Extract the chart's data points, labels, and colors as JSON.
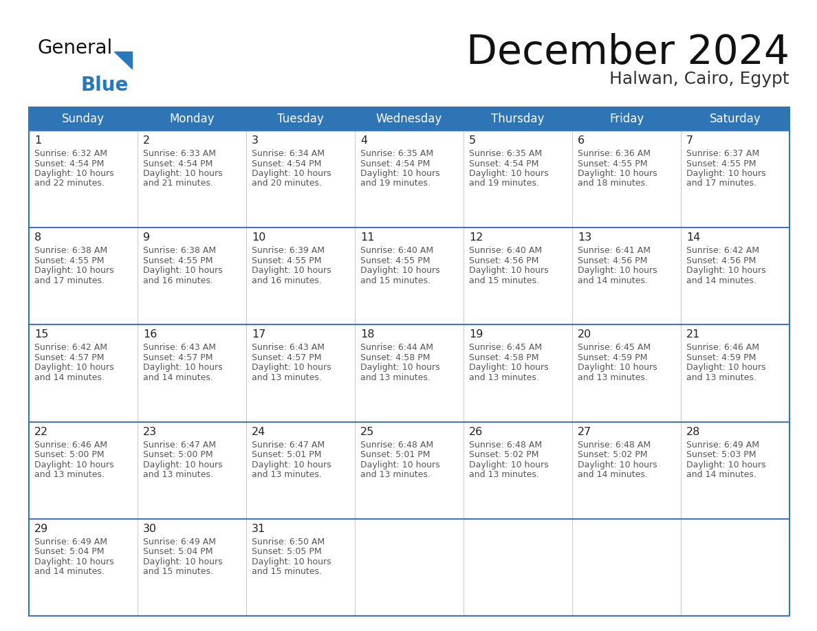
{
  "title": "December 2024",
  "subtitle": "Halwan, Cairo, Egypt",
  "header_color": "#2E75B6",
  "header_text_color": "#FFFFFF",
  "day_names": [
    "Sunday",
    "Monday",
    "Tuesday",
    "Wednesday",
    "Thursday",
    "Friday",
    "Saturday"
  ],
  "cell_bg_color": "#FFFFFF",
  "cell_border_color": "#2E75B6",
  "row_separator_color": "#4472C4",
  "vert_separator_color": "#C0C0C0",
  "day_num_color": "#222222",
  "text_color": "#555555",
  "bg_color": "#FFFFFF",
  "logo_general_color": "#111111",
  "logo_blue_color": "#2878BE",
  "calendar_data": [
    [
      {
        "day": 1,
        "sunrise": "6:32 AM",
        "sunset": "4:54 PM",
        "daylight": "10 hours and 22 minutes."
      },
      {
        "day": 2,
        "sunrise": "6:33 AM",
        "sunset": "4:54 PM",
        "daylight": "10 hours and 21 minutes."
      },
      {
        "day": 3,
        "sunrise": "6:34 AM",
        "sunset": "4:54 PM",
        "daylight": "10 hours and 20 minutes."
      },
      {
        "day": 4,
        "sunrise": "6:35 AM",
        "sunset": "4:54 PM",
        "daylight": "10 hours and 19 minutes."
      },
      {
        "day": 5,
        "sunrise": "6:35 AM",
        "sunset": "4:54 PM",
        "daylight": "10 hours and 19 minutes."
      },
      {
        "day": 6,
        "sunrise": "6:36 AM",
        "sunset": "4:55 PM",
        "daylight": "10 hours and 18 minutes."
      },
      {
        "day": 7,
        "sunrise": "6:37 AM",
        "sunset": "4:55 PM",
        "daylight": "10 hours and 17 minutes."
      }
    ],
    [
      {
        "day": 8,
        "sunrise": "6:38 AM",
        "sunset": "4:55 PM",
        "daylight": "10 hours and 17 minutes."
      },
      {
        "day": 9,
        "sunrise": "6:38 AM",
        "sunset": "4:55 PM",
        "daylight": "10 hours and 16 minutes."
      },
      {
        "day": 10,
        "sunrise": "6:39 AM",
        "sunset": "4:55 PM",
        "daylight": "10 hours and 16 minutes."
      },
      {
        "day": 11,
        "sunrise": "6:40 AM",
        "sunset": "4:55 PM",
        "daylight": "10 hours and 15 minutes."
      },
      {
        "day": 12,
        "sunrise": "6:40 AM",
        "sunset": "4:56 PM",
        "daylight": "10 hours and 15 minutes."
      },
      {
        "day": 13,
        "sunrise": "6:41 AM",
        "sunset": "4:56 PM",
        "daylight": "10 hours and 14 minutes."
      },
      {
        "day": 14,
        "sunrise": "6:42 AM",
        "sunset": "4:56 PM",
        "daylight": "10 hours and 14 minutes."
      }
    ],
    [
      {
        "day": 15,
        "sunrise": "6:42 AM",
        "sunset": "4:57 PM",
        "daylight": "10 hours and 14 minutes."
      },
      {
        "day": 16,
        "sunrise": "6:43 AM",
        "sunset": "4:57 PM",
        "daylight": "10 hours and 14 minutes."
      },
      {
        "day": 17,
        "sunrise": "6:43 AM",
        "sunset": "4:57 PM",
        "daylight": "10 hours and 13 minutes."
      },
      {
        "day": 18,
        "sunrise": "6:44 AM",
        "sunset": "4:58 PM",
        "daylight": "10 hours and 13 minutes."
      },
      {
        "day": 19,
        "sunrise": "6:45 AM",
        "sunset": "4:58 PM",
        "daylight": "10 hours and 13 minutes."
      },
      {
        "day": 20,
        "sunrise": "6:45 AM",
        "sunset": "4:59 PM",
        "daylight": "10 hours and 13 minutes."
      },
      {
        "day": 21,
        "sunrise": "6:46 AM",
        "sunset": "4:59 PM",
        "daylight": "10 hours and 13 minutes."
      }
    ],
    [
      {
        "day": 22,
        "sunrise": "6:46 AM",
        "sunset": "5:00 PM",
        "daylight": "10 hours and 13 minutes."
      },
      {
        "day": 23,
        "sunrise": "6:47 AM",
        "sunset": "5:00 PM",
        "daylight": "10 hours and 13 minutes."
      },
      {
        "day": 24,
        "sunrise": "6:47 AM",
        "sunset": "5:01 PM",
        "daylight": "10 hours and 13 minutes."
      },
      {
        "day": 25,
        "sunrise": "6:48 AM",
        "sunset": "5:01 PM",
        "daylight": "10 hours and 13 minutes."
      },
      {
        "day": 26,
        "sunrise": "6:48 AM",
        "sunset": "5:02 PM",
        "daylight": "10 hours and 13 minutes."
      },
      {
        "day": 27,
        "sunrise": "6:48 AM",
        "sunset": "5:02 PM",
        "daylight": "10 hours and 14 minutes."
      },
      {
        "day": 28,
        "sunrise": "6:49 AM",
        "sunset": "5:03 PM",
        "daylight": "10 hours and 14 minutes."
      }
    ],
    [
      {
        "day": 29,
        "sunrise": "6:49 AM",
        "sunset": "5:04 PM",
        "daylight": "10 hours and 14 minutes."
      },
      {
        "day": 30,
        "sunrise": "6:49 AM",
        "sunset": "5:04 PM",
        "daylight": "10 hours and 15 minutes."
      },
      {
        "day": 31,
        "sunrise": "6:50 AM",
        "sunset": "5:05 PM",
        "daylight": "10 hours and 15 minutes."
      },
      null,
      null,
      null,
      null
    ]
  ]
}
